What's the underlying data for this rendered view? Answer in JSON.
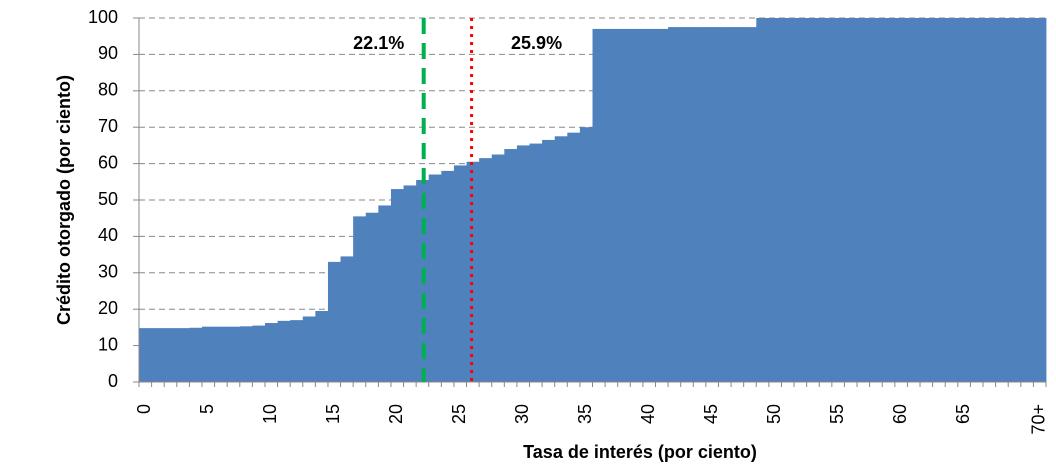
{
  "chart_data": {
    "type": "bar",
    "x_label": "Tasa de interés (por ciento)",
    "y_label": "Crédito otorgado (por ciento)",
    "categories": [
      "0",
      null,
      null,
      null,
      null,
      "5",
      null,
      null,
      null,
      null,
      "10",
      null,
      null,
      null,
      null,
      "15",
      null,
      null,
      null,
      null,
      "20",
      null,
      null,
      null,
      null,
      "25",
      null,
      null,
      null,
      null,
      "30",
      null,
      null,
      null,
      null,
      "35",
      null,
      null,
      null,
      null,
      "40",
      null,
      null,
      null,
      null,
      "45",
      null,
      null,
      null,
      null,
      "50",
      null,
      null,
      null,
      null,
      "55",
      null,
      null,
      null,
      null,
      "60",
      null,
      null,
      null,
      null,
      "65",
      null,
      null,
      null,
      null,
      null,
      "70+"
    ],
    "values": [
      14.8,
      14.8,
      14.8,
      14.8,
      14.9,
      15.2,
      15.2,
      15.2,
      15.3,
      15.5,
      16.2,
      16.8,
      17.0,
      18.0,
      19.5,
      33,
      34.5,
      45.5,
      46.5,
      48.5,
      53,
      54,
      55.5,
      57,
      58,
      59.5,
      60.5,
      61.5,
      62.5,
      64,
      65,
      65.5,
      66.5,
      67.5,
      68.5,
      70,
      97,
      97,
      97,
      97,
      97,
      97,
      97.5,
      97.5,
      97.5,
      97.5,
      97.5,
      97.5,
      97.5,
      100,
      100,
      100,
      100,
      100,
      100,
      100,
      100,
      100,
      100,
      100,
      100,
      100,
      100,
      100,
      100,
      100,
      100,
      100,
      100,
      100,
      100,
      100
    ],
    "color": "#4f81bd",
    "ylim": [
      0,
      100
    ],
    "yticks": [
      0,
      10,
      20,
      30,
      40,
      50,
      60,
      70,
      80,
      90,
      100
    ],
    "grid": true,
    "annotations": [
      {
        "value": 22.1,
        "label": "22.1%",
        "color": "#00b050",
        "style": "dashed"
      },
      {
        "value": 25.9,
        "label": "25.9%",
        "color": "#ff0000",
        "style": "dotted"
      }
    ]
  }
}
